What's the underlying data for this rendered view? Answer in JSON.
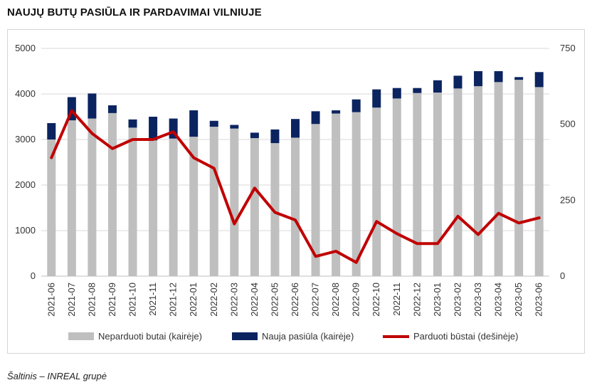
{
  "title": "NAUJŲ BUTŲ PASIŪLA IR PARDAVIMAI VILNIUJE",
  "source": "Šaltinis – INREAL grupė",
  "colors": {
    "unsold": "#bfbfbf",
    "new_supply": "#0b2460",
    "sold": "#c00000",
    "grid": "#d9d9d9"
  },
  "chart_data": {
    "type": "bar",
    "stacked": true,
    "categories": [
      "2021-06",
      "2021-07",
      "2021-08",
      "2021-09",
      "2021-10",
      "2021-11",
      "2021-12",
      "2022-01",
      "2022-02",
      "2022-03",
      "2022-04",
      "2022-05",
      "2022-06",
      "2022-07",
      "2022-08",
      "2022-09",
      "2022-10",
      "2022-11",
      "2022-12",
      "2023-01",
      "2023-02",
      "2023-03",
      "2023-04",
      "2023-05",
      "2023-06"
    ],
    "y_left": {
      "lim": [
        0,
        5000
      ],
      "ticks": [
        "0",
        "1000",
        "2000",
        "3000",
        "4000",
        "5000"
      ],
      "tick_values": [
        0,
        1000,
        2000,
        3000,
        4000,
        5000
      ]
    },
    "y_right": {
      "lim": [
        0,
        750
      ],
      "ticks": [
        "0",
        "250",
        "500",
        "750"
      ],
      "tick_values": [
        0,
        250,
        500,
        750
      ]
    },
    "grid": true,
    "legend_position": "bottom",
    "series": [
      {
        "name": "Neparduoti butai (kairėje)",
        "type": "bar",
        "axis": "left",
        "values": [
          3000,
          3420,
          3460,
          3580,
          3260,
          2980,
          3020,
          3060,
          3280,
          3240,
          3030,
          2920,
          3040,
          3340,
          3570,
          3600,
          3700,
          3900,
          4020,
          4030,
          4120,
          4170,
          4260,
          4310,
          4150
        ]
      },
      {
        "name": "Nauja pasiūla (kairėje)",
        "type": "bar",
        "axis": "left",
        "values": [
          360,
          510,
          550,
          170,
          180,
          520,
          440,
          580,
          130,
          80,
          120,
          300,
          410,
          280,
          70,
          280,
          400,
          230,
          110,
          270,
          280,
          330,
          240,
          60,
          330
        ]
      },
      {
        "name": "Parduoti būstai (dešinėje)",
        "type": "line",
        "axis": "right",
        "values": [
          390,
          545,
          470,
          420,
          450,
          450,
          475,
          390,
          355,
          172,
          290,
          210,
          185,
          65,
          82,
          45,
          180,
          140,
          107,
          107,
          197,
          137,
          207,
          175,
          192
        ]
      }
    ]
  }
}
